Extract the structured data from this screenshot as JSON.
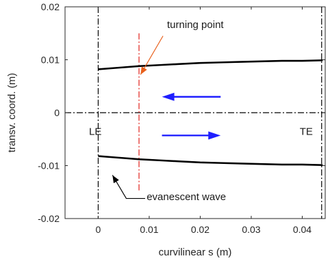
{
  "chart_data": {
    "type": "line",
    "title": "",
    "xlabel": "curvilinear s (m)",
    "ylabel": "transv. coord. (m)",
    "xlim": [
      -0.0065,
      0.0445
    ],
    "ylim": [
      -0.02,
      0.02
    ],
    "x_ticks": [
      0,
      0.01,
      0.02,
      0.03,
      0.04
    ],
    "x_tick_labels": [
      "0",
      "0.01",
      "0.02",
      "0.03",
      "0.04"
    ],
    "y_ticks": [
      -0.02,
      -0.01,
      0,
      0.01,
      0.02
    ],
    "y_tick_labels": [
      "-0.02",
      "-0.01",
      "0",
      "0.01",
      "0.02"
    ],
    "grid": false,
    "series": [
      {
        "color": "#000000",
        "x": [
          0,
          0.004,
          0.008,
          0.012,
          0.016,
          0.02,
          0.024,
          0.028,
          0.032,
          0.036,
          0.04,
          0.044
        ],
        "y": [
          0.0082,
          0.0085,
          0.0088,
          0.009,
          0.0092,
          0.0094,
          0.0095,
          0.0096,
          0.0097,
          0.0098,
          0.0098,
          0.0099
        ]
      },
      {
        "color": "#000000",
        "x": [
          0,
          0.004,
          0.008,
          0.012,
          0.016,
          0.02,
          0.024,
          0.028,
          0.032,
          0.036,
          0.04,
          0.044
        ],
        "y": [
          -0.0082,
          -0.0085,
          -0.0088,
          -0.009,
          -0.0092,
          -0.0094,
          -0.0095,
          -0.0096,
          -0.0097,
          -0.0098,
          -0.0098,
          -0.0099
        ]
      }
    ],
    "reference_lines": [
      {
        "orientation": "vertical",
        "value": 0,
        "color": "#000000",
        "style": "dashdot"
      },
      {
        "orientation": "vertical",
        "value": 0.0438,
        "color": "#000000",
        "style": "dashdot"
      },
      {
        "orientation": "horizontal",
        "value": 0,
        "color": "#000000",
        "style": "dashdot"
      },
      {
        "orientation": "vertical",
        "value": 0.008,
        "color": "#e0201b",
        "style": "dashdot",
        "y_range": [
          -0.015,
          0.015
        ]
      }
    ],
    "arrows": [
      {
        "color": "#1f1fff",
        "from": [
          0.024,
          0.003
        ],
        "to": [
          0.0125,
          0.003
        ]
      },
      {
        "color": "#1f1fff",
        "from": [
          0.0125,
          -0.0043
        ],
        "to": [
          0.024,
          -0.0043
        ]
      }
    ],
    "annotations": [
      {
        "text": "turning point",
        "x": 0.0135,
        "y": 0.016,
        "color": "#1a1a1a",
        "arrow_color": "#e8601c",
        "arrow_from": [
          0.0127,
          0.0145
        ],
        "arrow_to": [
          0.0083,
          0.0072
        ]
      },
      {
        "text": "evanescent wave",
        "x": 0.0095,
        "y": -0.0165,
        "color": "#1a1a1a",
        "arrow_color": "#000000",
        "arrow_path": [
          [
            0.0092,
            -0.0162
          ],
          [
            0.0055,
            -0.0162
          ],
          [
            0.0028,
            -0.0118
          ]
        ]
      },
      {
        "text": "LE",
        "x": -0.0018,
        "y": -0.0042,
        "color": "#000000"
      },
      {
        "text": "TE",
        "x": 0.0395,
        "y": -0.0042,
        "color": "#000000"
      }
    ]
  }
}
